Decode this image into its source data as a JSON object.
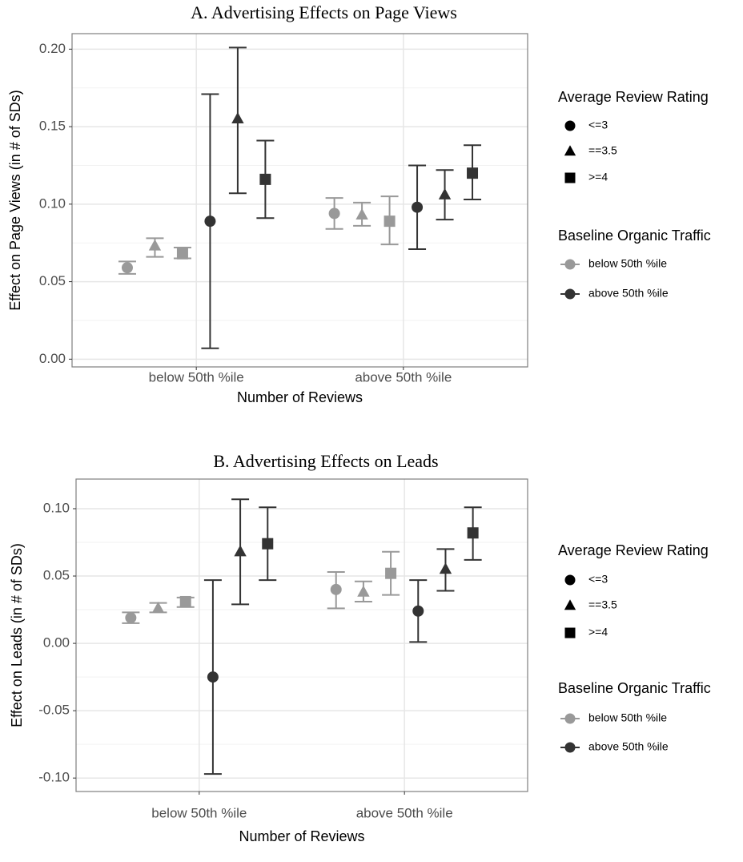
{
  "chart_data": [
    {
      "type": "errorbar",
      "title": "A. Advertising Effects on Page Views",
      "xlabel": "Number of Reviews",
      "ylabel": "Effect on Page Views (in # of SDs)",
      "categories": [
        "below 50th %ile",
        "above 50th %ile"
      ],
      "ylim": [
        -0.005,
        0.21
      ],
      "yticks": [
        {
          "value": 0,
          "label": "0.00"
        },
        {
          "value": 0.05,
          "label": "0.05"
        },
        {
          "value": 0.1,
          "label": "0.10"
        },
        {
          "value": 0.15,
          "label": "0.15"
        },
        {
          "value": 0.2,
          "label": "0.20"
        }
      ],
      "grid": true,
      "shape_legend": {
        "title": "Average Review Rating",
        "labels": [
          "<=3",
          "==3.5",
          ">=4"
        ],
        "shapes": [
          "circle",
          "triangle",
          "square"
        ]
      },
      "color_legend_title": "Baseline Organic Traffic",
      "series": [
        {
          "name": "below 50th %ile",
          "color": "#999999",
          "values": [
            [
              0.059,
              0.073,
              0.068
            ],
            [
              0.094,
              0.093,
              0.089
            ]
          ],
          "lower": [
            [
              0.055,
              0.066,
              0.065
            ],
            [
              0.084,
              0.086,
              0.074
            ]
          ],
          "upper": [
            [
              0.063,
              0.078,
              0.072
            ],
            [
              0.104,
              0.101,
              0.105
            ]
          ]
        },
        {
          "name": "above 50th %ile",
          "color": "#333333",
          "values": [
            [
              0.089,
              0.155,
              0.116
            ],
            [
              0.098,
              0.106,
              0.12
            ]
          ],
          "lower": [
            [
              0.007,
              0.107,
              0.091
            ],
            [
              0.071,
              0.09,
              0.103
            ]
          ],
          "upper": [
            [
              0.171,
              0.201,
              0.141
            ],
            [
              0.125,
              0.122,
              0.138
            ]
          ]
        }
      ]
    },
    {
      "type": "errorbar",
      "title": "B. Advertising Effects on Leads",
      "xlabel": "Number of Reviews",
      "ylabel": "Effect on Leads (in # of SDs)",
      "categories": [
        "below 50th %ile",
        "above 50th %ile"
      ],
      "ylim": [
        -0.11,
        0.122
      ],
      "yticks": [
        {
          "value": -0.1,
          "label": "-0.10"
        },
        {
          "value": -0.05,
          "label": "-0.05"
        },
        {
          "value": 0,
          "label": "0.00"
        },
        {
          "value": 0.05,
          "label": "0.05"
        },
        {
          "value": 0.1,
          "label": "0.10"
        }
      ],
      "grid": true,
      "shape_legend": {
        "title": "Average Review Rating",
        "labels": [
          "<=3",
          "==3.5",
          ">=4"
        ],
        "shapes": [
          "circle",
          "triangle",
          "square"
        ]
      },
      "color_legend_title": "Baseline Organic Traffic",
      "series": [
        {
          "name": "below 50th %ile",
          "color": "#999999",
          "values": [
            [
              0.019,
              0.026,
              0.031
            ],
            [
              0.04,
              0.038,
              0.052
            ]
          ],
          "lower": [
            [
              0.015,
              0.023,
              0.027
            ],
            [
              0.026,
              0.031,
              0.036
            ]
          ],
          "upper": [
            [
              0.023,
              0.03,
              0.034
            ],
            [
              0.053,
              0.046,
              0.068
            ]
          ]
        },
        {
          "name": "above 50th %ile",
          "color": "#333333",
          "values": [
            [
              -0.025,
              0.068,
              0.074
            ],
            [
              0.024,
              0.055,
              0.082
            ]
          ],
          "lower": [
            [
              -0.097,
              0.029,
              0.047
            ],
            [
              0.001,
              0.039,
              0.062
            ]
          ],
          "upper": [
            [
              0.047,
              0.107,
              0.101
            ],
            [
              0.047,
              0.07,
              0.101
            ]
          ]
        }
      ]
    }
  ]
}
